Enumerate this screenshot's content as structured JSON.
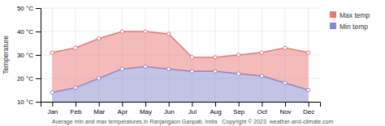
{
  "chart_data": {
    "type": "area",
    "caption": "Average min and max temperatures in Ranjangaon Ganpati, India   Copyright © 2023  weather-and-climate.com",
    "ylabel": "Temperature",
    "categories": [
      "Jan",
      "Feb",
      "Mar",
      "Apr",
      "May",
      "Jun",
      "Jul",
      "Aug",
      "Sep",
      "Oct",
      "Nov",
      "Dec"
    ],
    "series": [
      {
        "name": "Max temp",
        "color": "#e87878",
        "values": [
          31,
          33,
          37,
          40,
          40,
          39,
          29,
          29,
          30,
          31,
          33,
          31
        ]
      },
      {
        "name": "Min temp",
        "color": "#8888cc",
        "values": [
          14,
          16,
          20,
          24,
          25,
          24,
          23,
          23,
          22,
          21,
          18,
          15
        ]
      }
    ],
    "ylim": [
      10,
      50
    ],
    "yticks": [
      {
        "value": 10,
        "label": "10 °C"
      },
      {
        "value": 20,
        "label": "20 °C"
      },
      {
        "value": 30,
        "label": "30 °C"
      },
      {
        "value": 40,
        "label": "40 °C"
      },
      {
        "value": 50,
        "label": "50 °C"
      }
    ],
    "grid": true,
    "legend": "right"
  }
}
